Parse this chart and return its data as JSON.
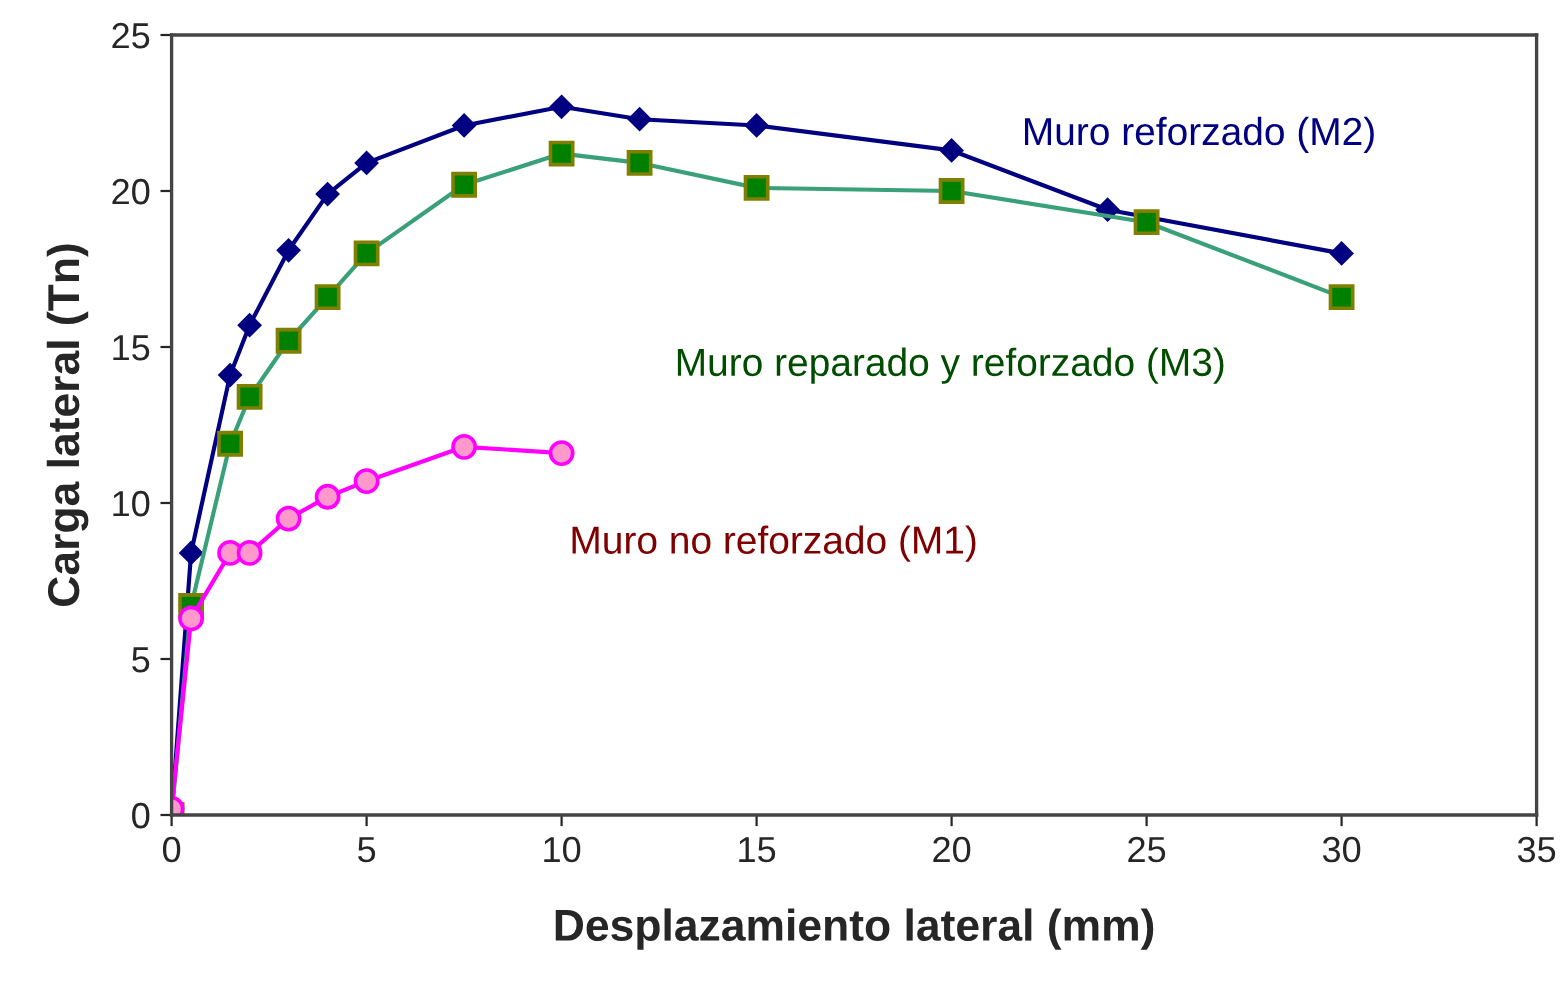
{
  "chart_data": {
    "type": "line",
    "xlabel": "Desplazamiento lateral (mm)",
    "ylabel": "Carga lateral (Tn)",
    "xlim": [
      0,
      35
    ],
    "xticks": [
      0,
      5,
      10,
      15,
      20,
      25,
      30,
      35
    ],
    "ylim": [
      0,
      25
    ],
    "yticks": [
      0,
      5,
      10,
      15,
      20,
      25
    ],
    "grid": false,
    "legend": false,
    "series": [
      {
        "name": "Muro reforzado (M2)",
        "color": "#000080",
        "marker": "diamond",
        "x": [
          0,
          0.5,
          1.5,
          2,
          3,
          4,
          5,
          7.5,
          10,
          12,
          15,
          20,
          24,
          30
        ],
        "values": [
          0,
          8.4,
          14.1,
          15.7,
          18.1,
          19.9,
          20.9,
          22.1,
          22.7,
          22.3,
          22.1,
          21.3,
          19.4,
          18.0
        ]
      },
      {
        "name": "Muro reparado y reforzado (M3)",
        "color": "#3aa07a",
        "marker": "square",
        "x": [
          0,
          0.5,
          1.5,
          2,
          3,
          4,
          5,
          7.5,
          10,
          12,
          15,
          20,
          25,
          30
        ],
        "values": [
          0,
          6.7,
          11.9,
          13.4,
          15.2,
          16.6,
          18.0,
          20.2,
          21.2,
          20.9,
          20.1,
          20.0,
          19.0,
          16.6
        ]
      },
      {
        "name": "Muro no reforzado (M1)",
        "color": "#ff00ff",
        "marker": "circle",
        "x": [
          0,
          0.5,
          1.5,
          2,
          3,
          4,
          5,
          7.5,
          10
        ],
        "values": [
          0.2,
          6.3,
          8.4,
          8.4,
          9.5,
          10.2,
          10.7,
          11.8,
          11.6
        ]
      }
    ]
  }
}
